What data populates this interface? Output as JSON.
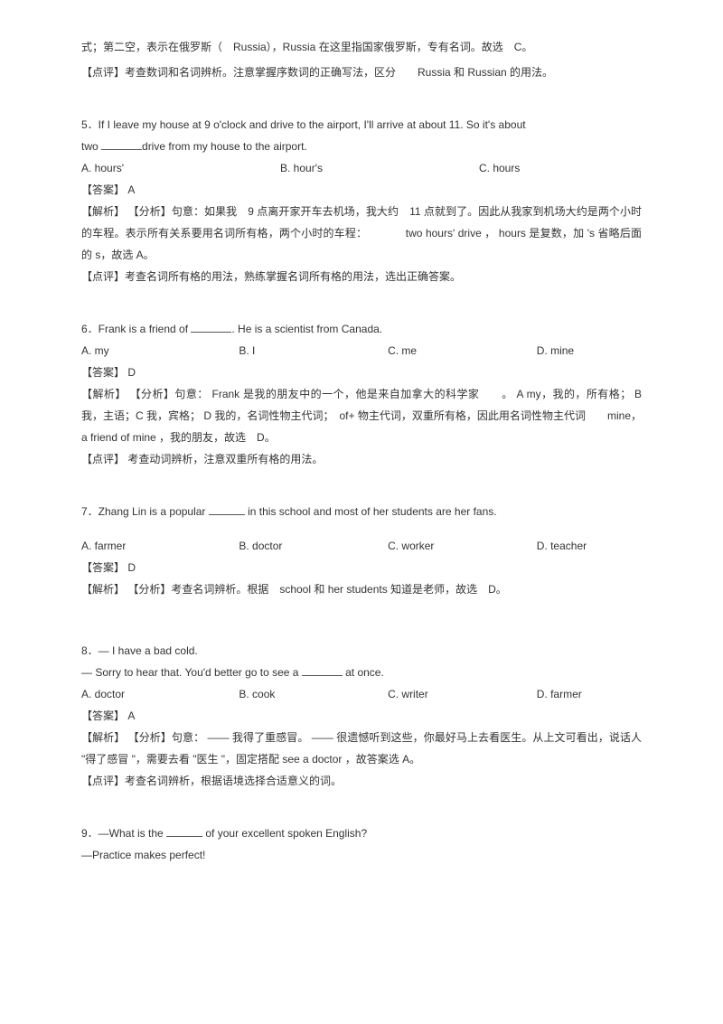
{
  "previous_tail": {
    "line1": "式；第二空，表示在俄罗斯（　Russia），Russia 在这里指国家俄罗斯，专有名词。故选　C。",
    "line2": "【点评】考查数词和名词辨析。注意掌握序数词的正确写法，区分　　Russia 和 Russian  的用法。"
  },
  "q5": {
    "text_line1": "5．If I leave my house at 9 o'clock and drive to the airport, I'll arrive at about 11. So it's about",
    "text_line2_pre": "two ",
    "text_line2_post": "drive from my house to the airport.",
    "opt_a": "A. hours'",
    "opt_b": "B. hour's",
    "opt_c": "C. hours",
    "answer": "【答案】  A",
    "explain1": "【解析】 【分析】句意：如果我　9 点离开家开车去机场，我大约　11 点就到了。因此从我家到机场大约是两个小时的车程。表示所有关系要用名词所有格，两个小时的车程：　　　　two hours' drive ， hours 是复数，加 's 省略后面的 s，故选 A。",
    "explain2": "【点评】考查名词所有格的用法，熟练掌握名词所有格的用法，选出正确答案。"
  },
  "q6": {
    "text_pre": "6．Frank is a friend of ",
    "text_post": ". He is a scientist from Canada.",
    "opt_a": "A. my",
    "opt_b": "B. I",
    "opt_c": "C. me",
    "opt_d": "D. mine",
    "answer": "【答案】  D",
    "explain1": "【解析】 【分析】句意： Frank 是我的朋友中的一个，他是来自加拿大的科学家　　。 A my，我的，所有格；  B 我，主语；C 我，宾格； D 我的，名词性物主代词；　of+ 物主代词，双重所有格，因此用名词性物主代词　　mine，a friend of mine ，我的朋友，故选　D。",
    "explain2": "【点评】 考查动词辨析，注意双重所有格的用法。"
  },
  "q7": {
    "text_pre": "7．Zhang Lin is a popular ",
    "text_post": " in this school and most of her students are her fans.",
    "opt_a": "A. farmer",
    "opt_b": "B. doctor",
    "opt_c": "C. worker",
    "opt_d": "D. teacher",
    "answer": "【答案】  D",
    "explain1": "【解析】 【分析】考查名词辨析。根据　school 和 her students 知道是老师，故选　D。"
  },
  "q8": {
    "text_line1": "8．— I have a bad cold.",
    "text_line2_pre": "— Sorry to hear that. You'd better go to see a ",
    "text_line2_post": " at once.",
    "opt_a": "A. doctor",
    "opt_b": "B. cook",
    "opt_c": "C. writer",
    "opt_d": "D. farmer",
    "answer": "【答案】 A",
    "explain1": "【解析】 【分析】句意：  —— 我得了重感冒。  —— 很遗憾听到这些，你最好马上去看医生。从上文可看出，说话人 \"得了感冒 \"，需要去看 \"医生 \"，固定搭配 see a doctor ，故答案选 A。",
    "explain2": "【点评】考查名词辨析，根据语境选择合适意义的词。"
  },
  "q9": {
    "text_line1_pre": "9．—What is the ",
    "text_line1_post": " of your excellent spoken English?",
    "text_line2": "—Practice makes perfect!"
  }
}
